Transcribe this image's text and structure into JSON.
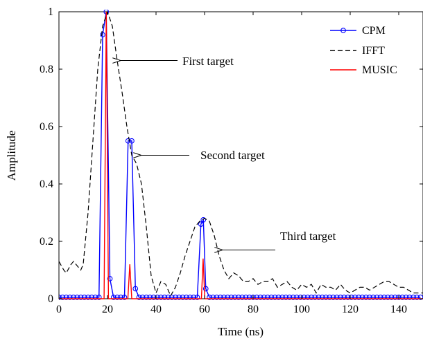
{
  "chart_data": {
    "type": "line",
    "xlabel": "Time (ns)",
    "ylabel": "Amplitude",
    "xlim": [
      0,
      150
    ],
    "ylim": [
      0,
      1
    ],
    "xticks": [
      0,
      20,
      40,
      60,
      80,
      100,
      120,
      140
    ],
    "yticks": [
      0,
      0.2,
      0.4,
      0.6,
      0.8,
      1
    ],
    "ytick_labels": [
      "0",
      "0.2",
      "0.4",
      "0.6",
      "0.8",
      "1"
    ],
    "grid": false,
    "legend_position": "top-right",
    "series": [
      {
        "name": "CPM",
        "color": "#0000ff",
        "style": "solid-circle-markers",
        "points": [
          [
            0,
            0.005
          ],
          [
            1.5,
            0.005
          ],
          [
            3,
            0.005
          ],
          [
            4.5,
            0.005
          ],
          [
            6,
            0.005
          ],
          [
            7.5,
            0.005
          ],
          [
            9,
            0.005
          ],
          [
            10.5,
            0.005
          ],
          [
            12,
            0.005
          ],
          [
            13.5,
            0.005
          ],
          [
            15,
            0.005
          ],
          [
            16.5,
            0.005
          ],
          [
            18,
            0.92
          ],
          [
            19.5,
            1.0
          ],
          [
            21,
            0.07
          ],
          [
            22.5,
            0.005
          ],
          [
            24,
            0.005
          ],
          [
            25.5,
            0.005
          ],
          [
            27,
            0.005
          ],
          [
            28.5,
            0.55
          ],
          [
            30,
            0.55
          ],
          [
            31.5,
            0.035
          ],
          [
            33,
            0.005
          ],
          [
            34.5,
            0.005
          ],
          [
            36,
            0.005
          ],
          [
            37.5,
            0.005
          ],
          [
            39,
            0.005
          ],
          [
            40.5,
            0.005
          ],
          [
            42,
            0.005
          ],
          [
            43.5,
            0.005
          ],
          [
            45,
            0.005
          ],
          [
            46.5,
            0.005
          ],
          [
            48,
            0.005
          ],
          [
            49.5,
            0.005
          ],
          [
            51,
            0.005
          ],
          [
            52.5,
            0.005
          ],
          [
            54,
            0.005
          ],
          [
            55.5,
            0.005
          ],
          [
            57,
            0.005
          ],
          [
            58.5,
            0.26
          ],
          [
            59.5,
            0.275
          ],
          [
            60.5,
            0.035
          ],
          [
            62,
            0.005
          ],
          [
            63.5,
            0.005
          ],
          [
            65,
            0.005
          ],
          [
            66.5,
            0.005
          ],
          [
            68,
            0.005
          ],
          [
            69.5,
            0.005
          ],
          [
            71,
            0.005
          ],
          [
            72.5,
            0.005
          ],
          [
            74,
            0.005
          ],
          [
            75.5,
            0.005
          ],
          [
            77,
            0.005
          ],
          [
            78.5,
            0.005
          ],
          [
            80,
            0.005
          ],
          [
            81.5,
            0.005
          ],
          [
            83,
            0.005
          ],
          [
            84.5,
            0.005
          ],
          [
            86,
            0.005
          ],
          [
            87.5,
            0.005
          ],
          [
            89,
            0.005
          ],
          [
            90.5,
            0.005
          ],
          [
            92,
            0.005
          ],
          [
            93.5,
            0.005
          ],
          [
            95,
            0.005
          ],
          [
            96.5,
            0.005
          ],
          [
            98,
            0.005
          ],
          [
            99.5,
            0.005
          ],
          [
            101,
            0.005
          ],
          [
            102.5,
            0.005
          ],
          [
            104,
            0.005
          ],
          [
            105.5,
            0.005
          ],
          [
            107,
            0.005
          ],
          [
            108.5,
            0.005
          ],
          [
            110,
            0.005
          ],
          [
            111.5,
            0.005
          ],
          [
            113,
            0.005
          ],
          [
            114.5,
            0.005
          ],
          [
            116,
            0.005
          ],
          [
            117.5,
            0.005
          ],
          [
            119,
            0.005
          ],
          [
            120.5,
            0.005
          ],
          [
            122,
            0.005
          ],
          [
            123.5,
            0.005
          ],
          [
            125,
            0.005
          ],
          [
            126.5,
            0.005
          ],
          [
            128,
            0.005
          ],
          [
            129.5,
            0.005
          ],
          [
            131,
            0.005
          ],
          [
            132.5,
            0.005
          ],
          [
            134,
            0.005
          ],
          [
            135.5,
            0.005
          ],
          [
            137,
            0.005
          ],
          [
            138.5,
            0.005
          ],
          [
            140,
            0.005
          ],
          [
            141.5,
            0.005
          ],
          [
            143,
            0.005
          ],
          [
            144.5,
            0.005
          ],
          [
            146,
            0.005
          ],
          [
            147.5,
            0.005
          ],
          [
            149,
            0.005
          ]
        ]
      },
      {
        "name": "IFFT",
        "color": "#000000",
        "style": "dashed",
        "points": [
          [
            0,
            0.13
          ],
          [
            2,
            0.1
          ],
          [
            3,
            0.09
          ],
          [
            5,
            0.12
          ],
          [
            6,
            0.13
          ],
          [
            8,
            0.11
          ],
          [
            9,
            0.1
          ],
          [
            10,
            0.12
          ],
          [
            12,
            0.3
          ],
          [
            14,
            0.55
          ],
          [
            16,
            0.8
          ],
          [
            18,
            0.95
          ],
          [
            20,
            1.0
          ],
          [
            22,
            0.95
          ],
          [
            24,
            0.83
          ],
          [
            26,
            0.72
          ],
          [
            28,
            0.6
          ],
          [
            30,
            0.5
          ],
          [
            32,
            0.47
          ],
          [
            34,
            0.4
          ],
          [
            36,
            0.25
          ],
          [
            38,
            0.08
          ],
          [
            40,
            0.02
          ],
          [
            42,
            0.06
          ],
          [
            44,
            0.05
          ],
          [
            46,
            0.01
          ],
          [
            48,
            0.04
          ],
          [
            50,
            0.09
          ],
          [
            52,
            0.15
          ],
          [
            54,
            0.2
          ],
          [
            56,
            0.25
          ],
          [
            58,
            0.27
          ],
          [
            60,
            0.28
          ],
          [
            62,
            0.27
          ],
          [
            64,
            0.22
          ],
          [
            66,
            0.15
          ],
          [
            68,
            0.1
          ],
          [
            70,
            0.07
          ],
          [
            72,
            0.09
          ],
          [
            74,
            0.08
          ],
          [
            76,
            0.06
          ],
          [
            78,
            0.06
          ],
          [
            80,
            0.07
          ],
          [
            82,
            0.05
          ],
          [
            84,
            0.06
          ],
          [
            86,
            0.06
          ],
          [
            88,
            0.07
          ],
          [
            90,
            0.04
          ],
          [
            92,
            0.05
          ],
          [
            94,
            0.06
          ],
          [
            96,
            0.04
          ],
          [
            98,
            0.03
          ],
          [
            100,
            0.05
          ],
          [
            102,
            0.04
          ],
          [
            104,
            0.05
          ],
          [
            106,
            0.02
          ],
          [
            108,
            0.05
          ],
          [
            110,
            0.04
          ],
          [
            112,
            0.04
          ],
          [
            114,
            0.03
          ],
          [
            116,
            0.05
          ],
          [
            118,
            0.03
          ],
          [
            120,
            0.02
          ],
          [
            122,
            0.03
          ],
          [
            124,
            0.04
          ],
          [
            126,
            0.04
          ],
          [
            128,
            0.03
          ],
          [
            130,
            0.04
          ],
          [
            132,
            0.05
          ],
          [
            134,
            0.06
          ],
          [
            136,
            0.06
          ],
          [
            138,
            0.05
          ],
          [
            140,
            0.04
          ],
          [
            142,
            0.04
          ],
          [
            144,
            0.03
          ],
          [
            146,
            0.02
          ],
          [
            148,
            0.02
          ],
          [
            150,
            0.02
          ]
        ]
      },
      {
        "name": "MUSIC",
        "color": "#ff0000",
        "style": "solid",
        "points": [
          [
            0,
            0
          ],
          [
            18.6,
            0
          ],
          [
            19.5,
            1.0
          ],
          [
            20.4,
            0
          ],
          [
            28.4,
            0
          ],
          [
            29.2,
            0.12
          ],
          [
            30,
            0
          ],
          [
            58.7,
            0
          ],
          [
            59.4,
            0.14
          ],
          [
            60.1,
            0
          ],
          [
            150,
            0
          ]
        ]
      }
    ],
    "annotations": [
      {
        "text": "First target",
        "arrow_to": [
          22,
          0.83
        ]
      },
      {
        "text": "Second target",
        "arrow_to": [
          30.5,
          0.5
        ]
      },
      {
        "text": "Third target",
        "arrow_to": [
          64,
          0.17
        ]
      }
    ]
  }
}
